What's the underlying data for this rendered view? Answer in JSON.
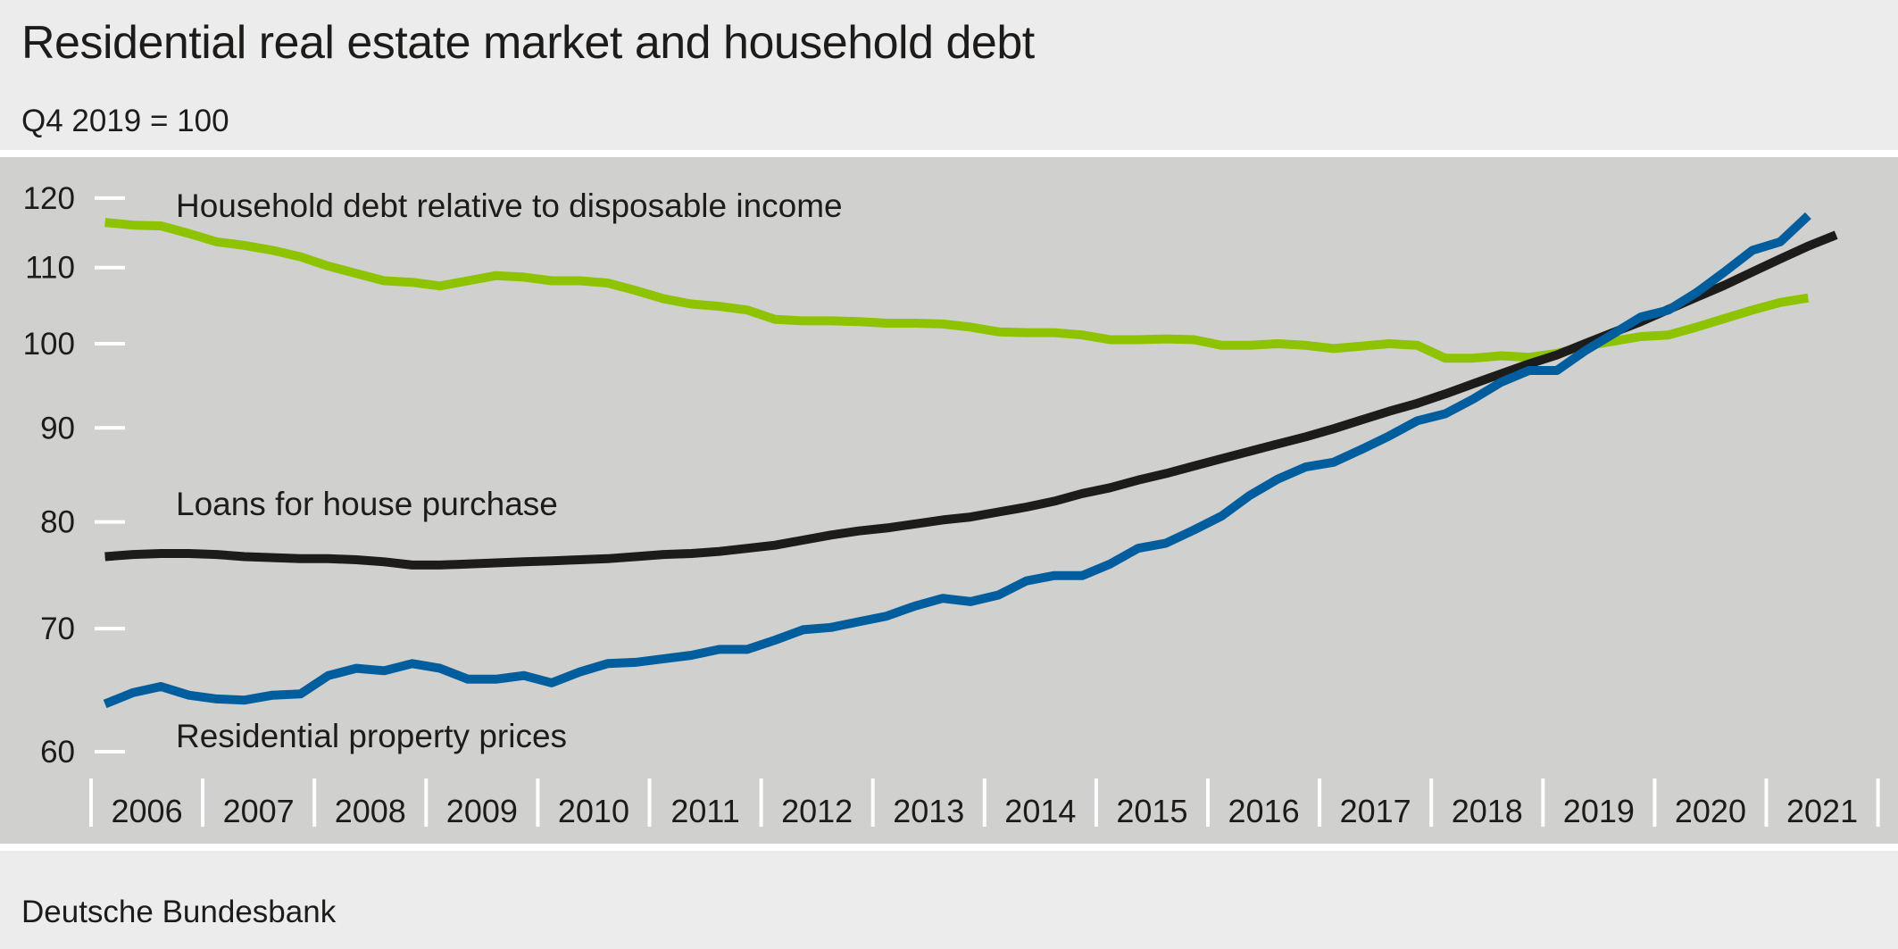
{
  "header": {
    "title": "Residential real estate market and household debt",
    "subtitle": "Q4 2019 = 100"
  },
  "footer": {
    "source": "Deutsche Bundesbank"
  },
  "chart_data": {
    "type": "line",
    "title": "Residential real estate market and household debt",
    "subtitle": "Q4 2019 = 100",
    "xlabel": "",
    "ylabel": "",
    "x_frequency": "quarterly",
    "x_start": "2006 Q1",
    "x_tick_labels": [
      "2006",
      "2007",
      "2008",
      "2009",
      "2010",
      "2011",
      "2012",
      "2013",
      "2014",
      "2015",
      "2016",
      "2017",
      "2018",
      "2019",
      "2020",
      "2021"
    ],
    "y_scale": "log",
    "ylim": [
      60,
      120
    ],
    "y_ticks": [
      60,
      70,
      80,
      90,
      100,
      110,
      120
    ],
    "grid": false,
    "legend": "inline labels",
    "series": [
      {
        "name": "Household debt relative to disposable income",
        "color": "#8dc300",
        "values": [
          116.4,
          116.0,
          115.9,
          114.8,
          113.6,
          113.1,
          112.4,
          111.5,
          110.2,
          109.2,
          108.2,
          108.0,
          107.5,
          108.2,
          108.9,
          108.7,
          108.2,
          108.2,
          107.9,
          106.9,
          105.8,
          105.1,
          104.8,
          104.3,
          103.1,
          102.9,
          102.9,
          102.8,
          102.6,
          102.6,
          102.5,
          102.1,
          101.5,
          101.4,
          101.4,
          101.1,
          100.5,
          100.5,
          100.6,
          100.5,
          99.8,
          99.8,
          100.0,
          99.8,
          99.4,
          99.7,
          100.0,
          99.8,
          98.2,
          98.2,
          98.5,
          98.3,
          98.8,
          99.7,
          100.3,
          100.9,
          101.1,
          102.1,
          103.2,
          104.3,
          105.3,
          105.9
        ]
      },
      {
        "name": "Loans for house purchase",
        "color": "#1e1c1a",
        "values": [
          76.6,
          76.8,
          76.9,
          76.9,
          76.8,
          76.6,
          76.5,
          76.4,
          76.4,
          76.3,
          76.1,
          75.8,
          75.8,
          75.9,
          76.0,
          76.1,
          76.2,
          76.3,
          76.4,
          76.6,
          76.8,
          76.9,
          77.1,
          77.4,
          77.7,
          78.2,
          78.7,
          79.1,
          79.4,
          79.8,
          80.2,
          80.5,
          81.0,
          81.5,
          82.1,
          82.9,
          83.5,
          84.3,
          85.0,
          85.8,
          86.6,
          87.4,
          88.2,
          89.0,
          89.9,
          90.9,
          91.9,
          92.8,
          93.9,
          95.1,
          96.3,
          97.5,
          98.6,
          100.0,
          101.4,
          102.8,
          104.4,
          106.0,
          107.6,
          109.4,
          111.2,
          113.0,
          114.6
        ]
      },
      {
        "name": "Residential property prices",
        "color": "#005e9e",
        "values": [
          63.7,
          64.6,
          65.1,
          64.4,
          64.1,
          64.0,
          64.4,
          64.5,
          66.0,
          66.6,
          66.4,
          67.0,
          66.6,
          65.7,
          65.7,
          66.0,
          65.4,
          66.3,
          67.0,
          67.1,
          67.4,
          67.7,
          68.2,
          68.2,
          69.0,
          69.9,
          70.1,
          70.6,
          71.1,
          72.0,
          72.7,
          72.4,
          73.0,
          74.3,
          74.8,
          74.8,
          75.9,
          77.4,
          77.9,
          79.2,
          80.6,
          82.7,
          84.4,
          85.7,
          86.2,
          87.6,
          89.1,
          90.8,
          91.6,
          93.3,
          95.3,
          96.7,
          96.7,
          99.1,
          101.2,
          103.4,
          104.3,
          106.6,
          109.4,
          112.4,
          113.6,
          117.4
        ]
      }
    ]
  }
}
